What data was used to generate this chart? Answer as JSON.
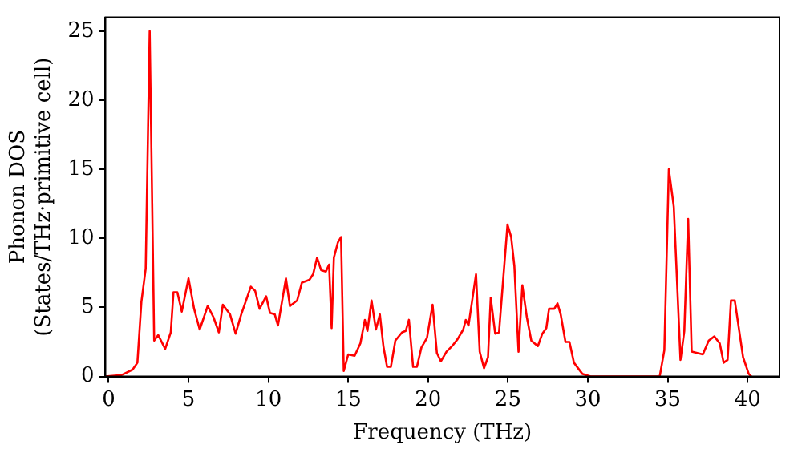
{
  "chart_data": {
    "type": "line",
    "xlabel": "Frequency (THz)",
    "ylabel": "Phonon DOS\n(States/THz·primitive cell)",
    "xlim": [
      -0.2,
      42
    ],
    "ylim": [
      0,
      26
    ],
    "xticks": [
      0,
      5,
      10,
      15,
      20,
      25,
      30,
      35,
      40
    ],
    "yticks": [
      0,
      5,
      10,
      15,
      20,
      25
    ],
    "legend": false,
    "marker": "none",
    "series": [
      {
        "color": "#ff0000",
        "x": [
          -0.2,
          0.8,
          1.5,
          1.8,
          2.05,
          2.32,
          2.57,
          2.85,
          3.1,
          3.54,
          3.89,
          4.06,
          4.3,
          4.58,
          5.0,
          5.35,
          5.7,
          6.2,
          6.56,
          6.9,
          7.15,
          7.6,
          7.95,
          8.3,
          8.9,
          9.17,
          9.45,
          9.86,
          10.1,
          10.4,
          10.6,
          11.1,
          11.35,
          11.8,
          12.1,
          12.57,
          12.8,
          13.05,
          13.3,
          13.6,
          13.8,
          13.96,
          14.1,
          14.35,
          14.55,
          14.72,
          15.0,
          15.4,
          15.76,
          16.04,
          16.2,
          16.46,
          16.73,
          16.98,
          17.2,
          17.43,
          17.67,
          17.95,
          18.37,
          18.6,
          18.8,
          19.06,
          19.3,
          19.58,
          19.93,
          20.28,
          20.55,
          20.8,
          21.15,
          21.5,
          21.84,
          22.2,
          22.36,
          22.53,
          23.0,
          23.23,
          23.5,
          23.75,
          23.92,
          24.2,
          24.44,
          24.97,
          25.2,
          25.4,
          25.66,
          25.9,
          26.18,
          26.46,
          26.87,
          27.15,
          27.4,
          27.57,
          27.9,
          28.1,
          28.3,
          28.6,
          28.85,
          29.13,
          29.65,
          30.17,
          34.5,
          34.79,
          35.07,
          35.38,
          35.8,
          36.04,
          36.28,
          36.5,
          37.2,
          37.57,
          37.92,
          38.26,
          38.5,
          38.75,
          38.96,
          39.2,
          39.72,
          40.07,
          40.24
        ],
        "values": [
          0,
          0.1,
          0.5,
          1.0,
          5.4,
          7.8,
          25,
          2.6,
          3.0,
          2.0,
          3.2,
          6.1,
          6.1,
          4.7,
          7.1,
          4.9,
          3.4,
          5.1,
          4.3,
          3.2,
          5.2,
          4.5,
          3.1,
          4.5,
          6.5,
          6.2,
          4.9,
          5.8,
          4.6,
          4.5,
          3.7,
          7.1,
          5.1,
          5.5,
          6.8,
          7.0,
          7.4,
          8.6,
          7.7,
          7.6,
          8.1,
          3.5,
          8.6,
          9.7,
          10.1,
          0.4,
          1.6,
          1.5,
          2.4,
          4.1,
          3.3,
          5.5,
          3.4,
          4.5,
          2.2,
          0.7,
          0.7,
          2.6,
          3.2,
          3.3,
          4.1,
          0.7,
          0.7,
          2.1,
          2.8,
          5.2,
          1.7,
          1.1,
          1.8,
          2.2,
          2.7,
          3.4,
          4.1,
          3.7,
          7.4,
          1.8,
          0.6,
          1.4,
          5.7,
          3.1,
          3.2,
          11.0,
          10.1,
          8.0,
          1.8,
          6.6,
          4.3,
          2.6,
          2.2,
          3.1,
          3.5,
          4.9,
          4.9,
          5.3,
          4.5,
          2.5,
          2.5,
          1.0,
          0.2,
          0,
          0,
          1.9,
          15.0,
          12.3,
          1.2,
          3.3,
          11.4,
          1.8,
          1.6,
          2.6,
          2.9,
          2.4,
          1.0,
          1.2,
          5.5,
          5.5,
          1.4,
          0.2,
          0
        ]
      }
    ]
  }
}
